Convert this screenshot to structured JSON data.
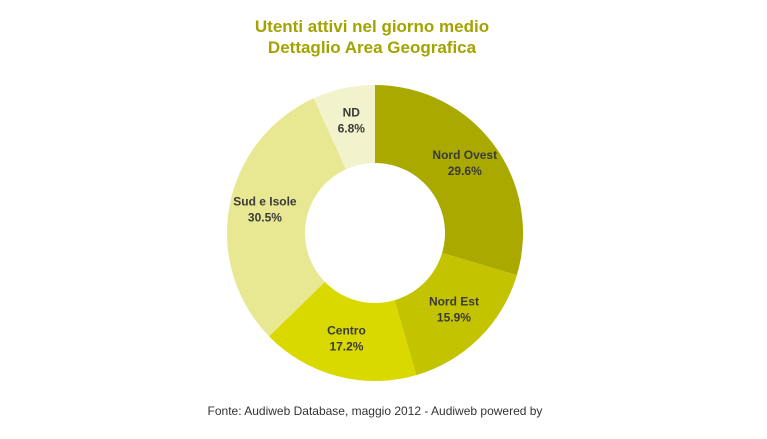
{
  "chart_data": {
    "type": "donut",
    "title": "Utenti attivi nel giorno medio",
    "subtitle": "Dettaglio Area Geografica",
    "categories": [
      "Nord Ovest",
      "Nord Est",
      "Centro",
      "Sud e Isole",
      "ND"
    ],
    "values": [
      29.6,
      15.9,
      17.2,
      30.5,
      6.8
    ],
    "value_labels": [
      "29.6%",
      "15.9%",
      "17.2%",
      "30.5%",
      "6.8%"
    ],
    "colors": [
      "#a9a900",
      "#c3c300",
      "#d9d900",
      "#e8e892",
      "#f2f2cc"
    ],
    "source": "Fonte: Audiweb Database, maggio 2012 - Audiweb powered by"
  }
}
